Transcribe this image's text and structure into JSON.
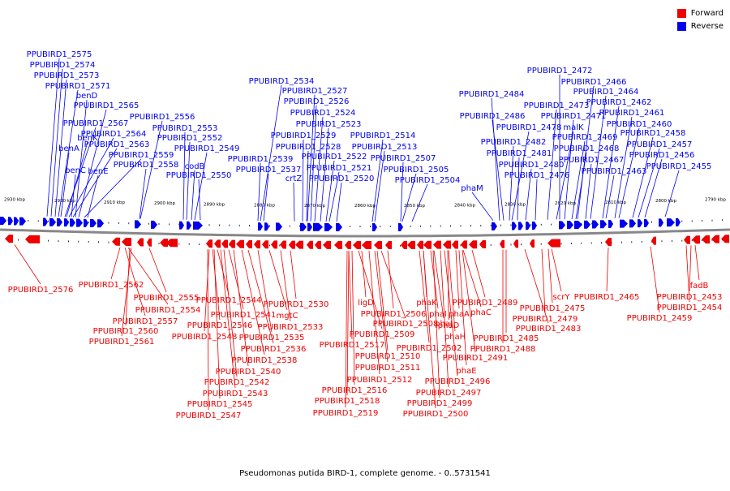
{
  "legend": [
    {
      "label": "Forward",
      "color": "#ee0000"
    },
    {
      "label": "Reverse",
      "color": "#0000ee"
    }
  ],
  "caption": "Pseudomonas putida BIRD-1, complete genome. - 0..5731541",
  "colors": {
    "forward": "#ee0000",
    "reverse": "#0000ee",
    "backbone": "#888888"
  },
  "chart_data": {
    "type": "genome_map",
    "organism": "Pseudomonas putida BIRD-1",
    "range_bp": [
      0,
      5731541
    ],
    "visible_range_kbp": [
      2790,
      2930
    ],
    "tick_labels": [
      "2930 kbp",
      "2920 kbp",
      "2910 kbp",
      "2900 kbp",
      "2890 kbp",
      "2880 kbp",
      "2870 kbp",
      "2860 kbp",
      "2850 kbp",
      "2840 kbp",
      "2830 kbp",
      "2820 kbp",
      "2810 kbp",
      "2800 kbp",
      "2790 kbp"
    ],
    "reverse_labels": [
      "PPUBIRD1_2575",
      "PPUBIRD1_2574",
      "PPUBIRD1_2573",
      "PPUBIRD1_2571",
      "benD",
      "PPUBIRD1_2565",
      "PPUBIRD1_2567",
      "PPUBIRD1_2564",
      "benA",
      "PPUBIRD1_2563",
      "benK",
      "PPUBIRD1_2559",
      "benC",
      "benE",
      "PPUBIRD1_2558",
      "PPUBIRD1_2556",
      "PPUBIRD1_2553",
      "PPUBIRD1_2552",
      "codB",
      "PPUBIRD1_2549",
      "PPUBIRD1_2550",
      "PPUBIRD1_2534",
      "PPUBIRD1_2527",
      "PPUBIRD1_2526",
      "PPUBIRD1_2524",
      "PPUBIRD1_2523",
      "PPUBIRD1_2529",
      "PPUBIRD1_2514",
      "PPUBIRD1_2528",
      "PPUBIRD1_2513",
      "PPUBIRD1_2539",
      "PPUBIRD1_2522",
      "PPUBIRD1_2507",
      "PPUBIRD1_2537",
      "PPUBIRD1_2521",
      "PPUBIRD1_2505",
      "crtZ",
      "PPUBIRD1_2520",
      "PPUBIRD1_2504",
      "PPUBIRD1_2472",
      "PPUBIRD1_2466",
      "PPUBIRD1_2484",
      "PPUBIRD1_2464",
      "PPUBIRD1_2473",
      "PPUBIRD1_2462",
      "PPUBIRD1_2486",
      "PPUBIRD1_2471",
      "PPUBIRD1_2461",
      "PPUBIRD1_2478",
      "malK",
      "PPUBIRD1_2460",
      "PPUBIRD1_2469",
      "PPUBIRD1_2458",
      "PPUBIRD1_2482",
      "PPUBIRD1_2468",
      "PPUBIRD1_2457",
      "PPUBIRD1_2481",
      "PPUBIRD1_2456",
      "PPUBIRD1_2467",
      "PPUBIRD1_2480",
      "PPUBIRD1_2455",
      "PPUBIRD1_2463",
      "PPUBIRD1_2476",
      "phaM"
    ],
    "forward_labels": [
      "PPUBIRD1_2576",
      "PPUBIRD1_2562",
      "PPUBIRD1_2555",
      "PPUBIRD1_2554",
      "PPUBIRD1_2557",
      "PPUBIRD1_2560",
      "PPUBIRD1_2561",
      "PPUBIRD1_2544",
      "PPUBIRD1_2541",
      "PPUBIRD1_2546",
      "PPUBIRD1_2548",
      "PPUBIRD1_2530",
      "mgtC",
      "PPUBIRD1_2533",
      "PPUBIRD1_2535",
      "PPUBIRD1_2536",
      "PPUBIRD1_2538",
      "PPUBIRD1_2540",
      "PPUBIRD1_2542",
      "PPUBIRD1_2543",
      "PPUBIRD1_2545",
      "PPUBIRD1_2547",
      "ligD",
      "PPUBIRD1_2506",
      "PPUBIRD1_2508",
      "PPUBIRD1_2509",
      "PPUBIRD1_2517",
      "PPUBIRD1_2510",
      "PPUBIRD1_2511",
      "PPUBIRD1_2512",
      "PPUBIRD1_2516",
      "PPUBIRD1_2518",
      "PPUBIRD1_2519",
      "phaK",
      "phaJ",
      "phaI",
      "phaD",
      "phaA",
      "phaC",
      "PPUBIRD1_2489",
      "phaH",
      "PPUBIRD1_2502",
      "PPUBIRD1_2491",
      "phaE",
      "PPUBIRD1_2496",
      "PPUBIRD1_2497",
      "PPUBIRD1_2499",
      "PPUBIRD1_2500",
      "scrY",
      "PPUBIRD1_2475",
      "PPUBIRD1_2479",
      "PPUBIRD1_2483",
      "PPUBIRD1_2485",
      "PPUBIRD1_2488",
      "PPUBIRD1_2465",
      "PPUBIRD1_2459",
      "fadB",
      "PPUBIRD1_2453",
      "PPUBIRD1_2454"
    ]
  }
}
